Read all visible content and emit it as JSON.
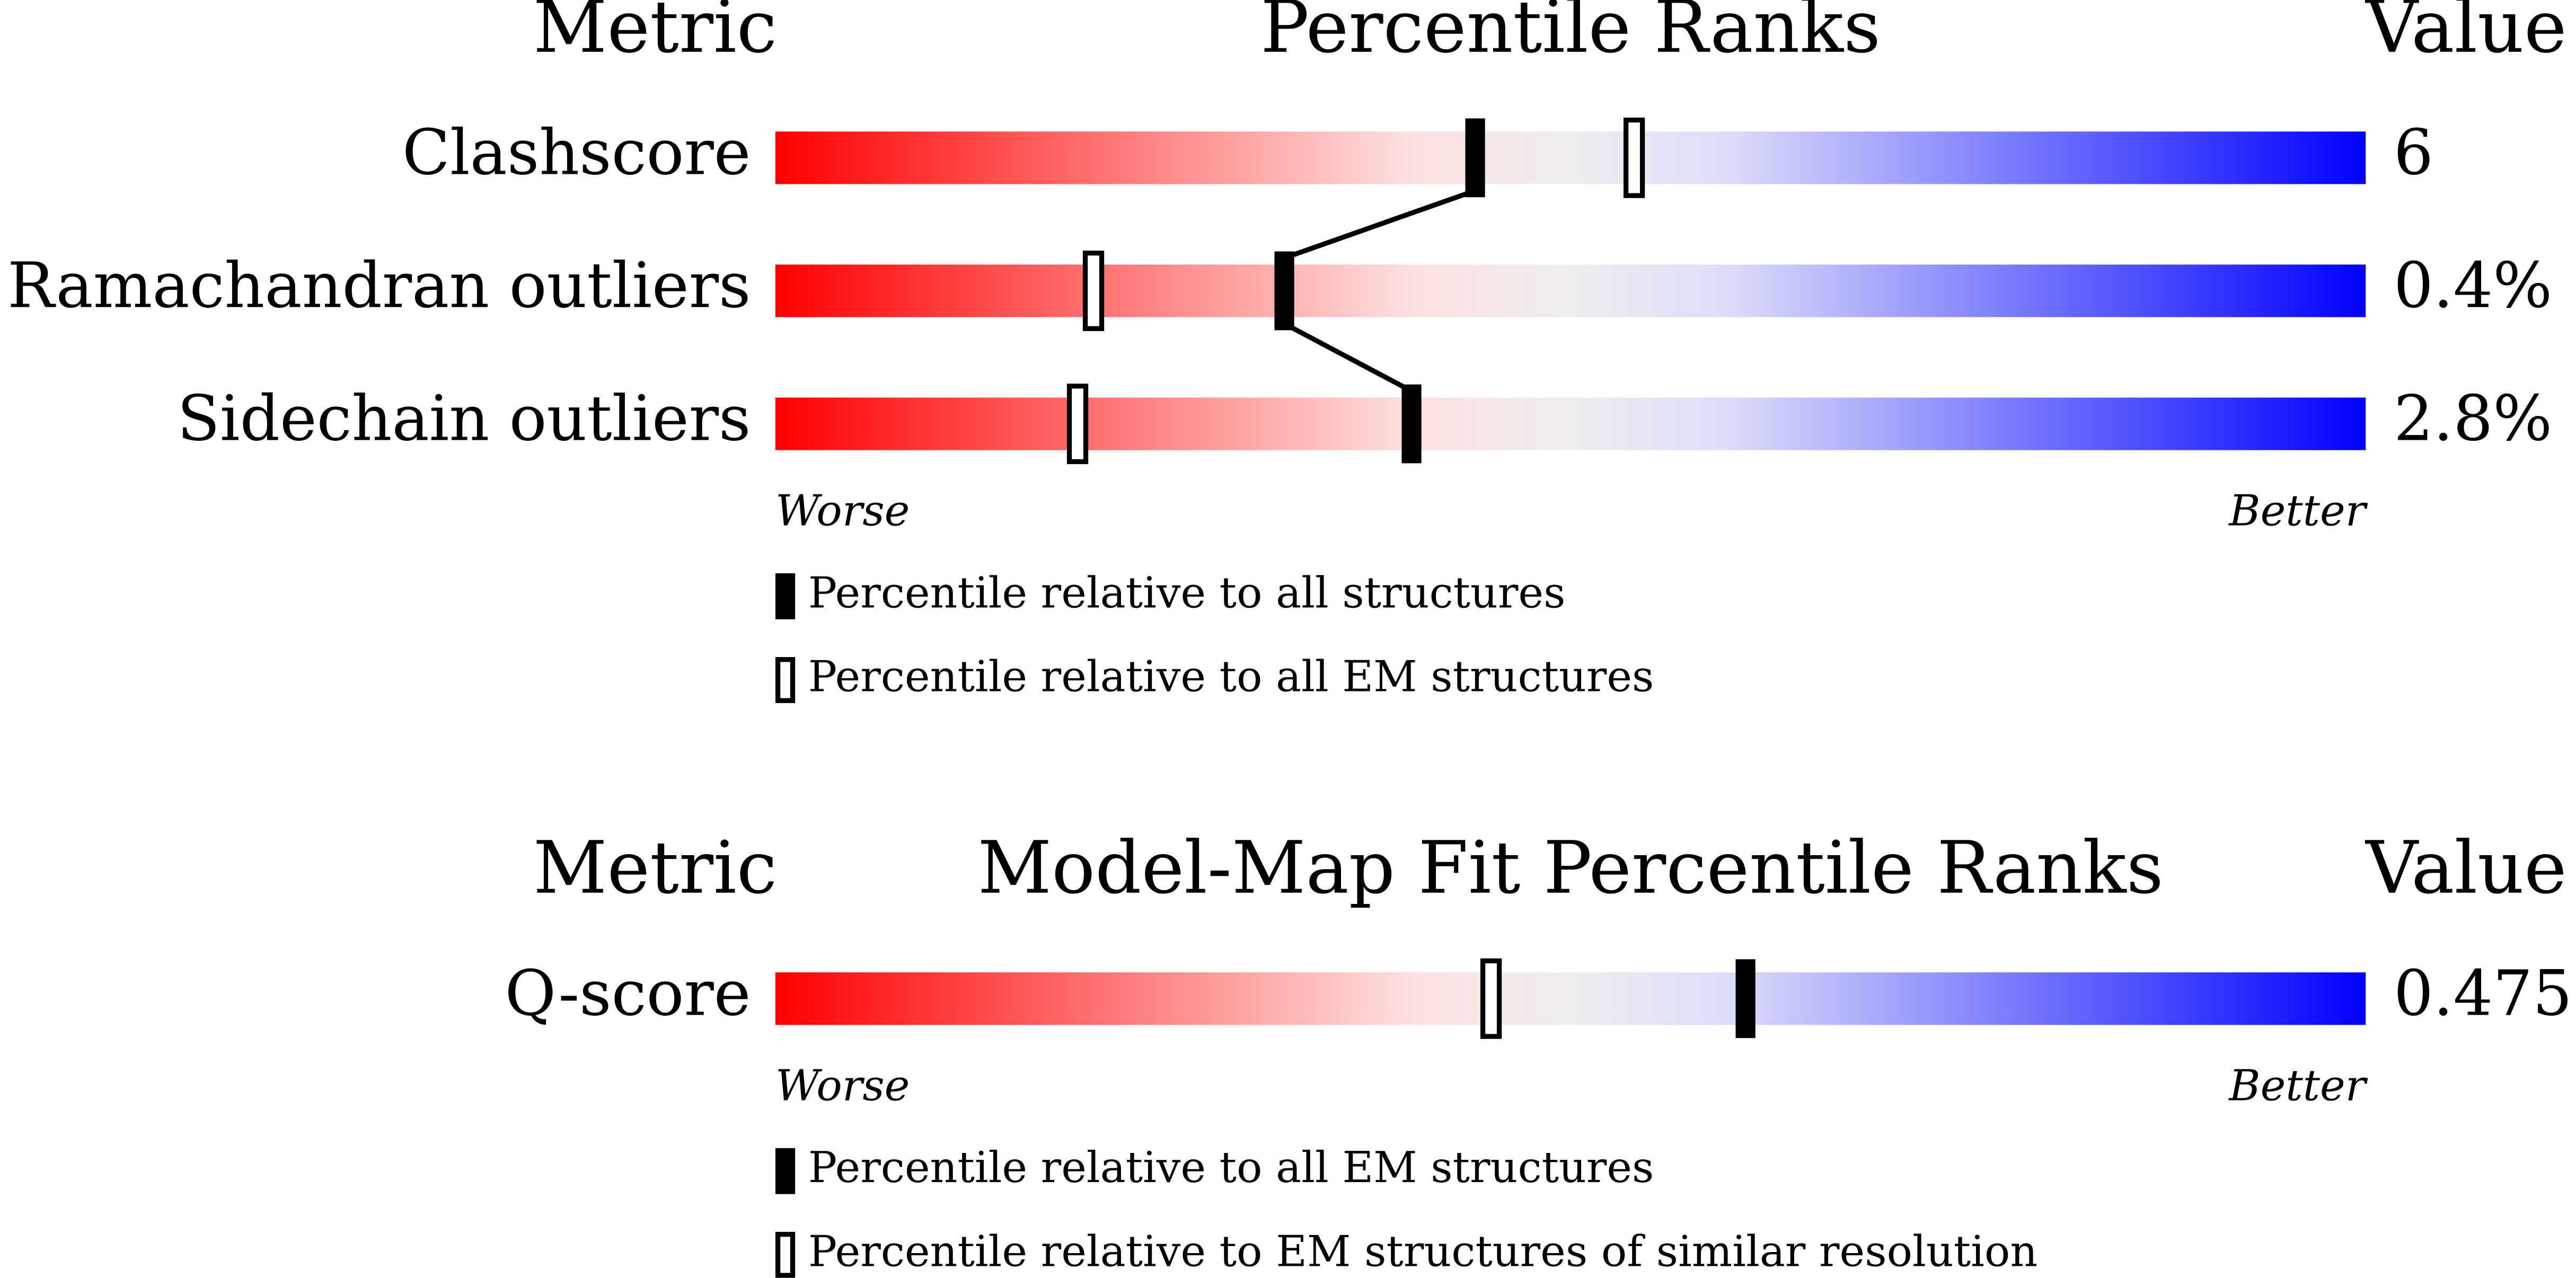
{
  "chart_data": [
    {
      "type": "slider",
      "metric_header": "Metric",
      "title": "Percentile Ranks",
      "value_header": "Value",
      "categories": [
        "Clashscore",
        "Ramachandran outliers",
        "Sidechain outliers"
      ],
      "value_labels": [
        "6",
        "0.4%",
        "2.8%"
      ],
      "series": [
        {
          "name": "Percentile relative to all structures",
          "style": "filled",
          "color": "#000000",
          "values": [
            44,
            32,
            40
          ]
        },
        {
          "name": "Percentile relative to all EM structures",
          "style": "open",
          "color": "#000000",
          "values": [
            54,
            20,
            19
          ]
        }
      ],
      "connect_series": 0,
      "xlim": [
        0,
        100
      ],
      "low_label": "Worse",
      "high_label": "Better",
      "gradient": [
        "#ff0000",
        "#fde0e0",
        "#eeeeee",
        "#dcdcfa",
        "#0000ff"
      ]
    },
    {
      "type": "slider",
      "metric_header": "Metric",
      "title": "Model-Map Fit Percentile Ranks",
      "value_header": "Value",
      "categories": [
        "Q-score"
      ],
      "value_labels": [
        "0.475"
      ],
      "series": [
        {
          "name": "Percentile relative to all EM structures",
          "style": "filled",
          "color": "#000000",
          "values": [
            61
          ]
        },
        {
          "name": "Percentile relative to EM structures of similar resolution",
          "style": "open",
          "color": "#000000",
          "values": [
            45
          ]
        }
      ],
      "connect_series": 0,
      "xlim": [
        0,
        100
      ],
      "low_label": "Worse",
      "high_label": "Better",
      "gradient": [
        "#ff0000",
        "#fde0e0",
        "#eeeeee",
        "#dcdcfa",
        "#0000ff"
      ]
    }
  ]
}
